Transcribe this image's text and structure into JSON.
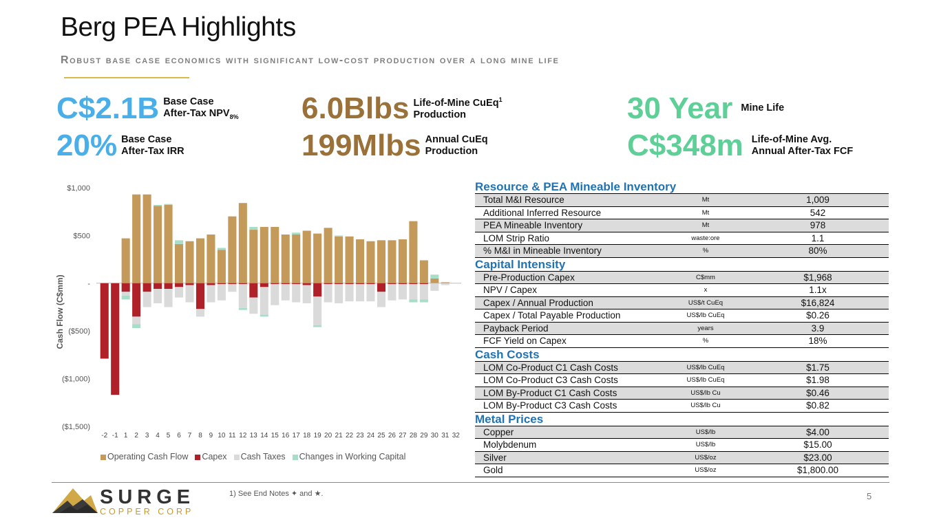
{
  "header": {
    "title": "Berg PEA Highlights",
    "subtitle": "Robust base case economics with significant low-cost production over a long mine life"
  },
  "metrics": {
    "npv": {
      "value": "C$2.1B",
      "label1": "Base Case",
      "label2": "After-Tax NPV",
      "label2_sub": "8%"
    },
    "irr": {
      "value": "20%",
      "label1": "Base Case",
      "label2": "After-Tax IRR"
    },
    "lom": {
      "value": "6.0Blbs",
      "label1": "Life-of-Mine CuEq",
      "label1_sup": "1",
      "label2": "Production"
    },
    "annual": {
      "value": "199Mlbs",
      "label1": "Annual CuEq",
      "label2": "Production"
    },
    "life": {
      "value": "30 Year",
      "label1": "Mine Life"
    },
    "fcf": {
      "value": "C$348m",
      "label1": "Life-of-Mine Avg.",
      "label2": "Annual After-Tax FCF"
    }
  },
  "colors": {
    "blue": "#4aaee8",
    "brown": "#9a7138",
    "green": "#5fcf98",
    "section": "#1f73b4",
    "gold": "#d8b94a",
    "operating": "#c39a5a",
    "capex": "#b02028",
    "taxes": "#dadada",
    "wc": "#a8dec8"
  },
  "chart_data": {
    "type": "bar",
    "stacked": true,
    "ylabel": "Cash Flow (C$mm)",
    "ylim": [
      -1500,
      1000
    ],
    "yticks": [
      1000,
      500,
      0,
      -500,
      -1000,
      -1500
    ],
    "ytick_labels": [
      "$1,000",
      "$500",
      "-",
      "($500)",
      "($1,000)",
      "($1,500)"
    ],
    "categories": [
      "-2",
      "-1",
      "1",
      "2",
      "3",
      "4",
      "5",
      "6",
      "7",
      "8",
      "9",
      "10",
      "11",
      "12",
      "13",
      "14",
      "15",
      "16",
      "17",
      "18",
      "19",
      "20",
      "21",
      "22",
      "23",
      "24",
      "25",
      "26",
      "27",
      "28",
      "29",
      "30",
      "31",
      "32"
    ],
    "series": [
      {
        "name": "Operating Cash Flow",
        "values": [
          0,
          0,
          470,
          930,
          930,
          810,
          820,
          410,
          440,
          470,
          510,
          350,
          700,
          840,
          560,
          590,
          590,
          510,
          510,
          550,
          520,
          580,
          490,
          490,
          460,
          440,
          450,
          450,
          460,
          650,
          240,
          50,
          10,
          0
        ]
      },
      {
        "name": "Capex",
        "values": [
          -790,
          -1170,
          -90,
          -350,
          -90,
          -60,
          -60,
          -40,
          -20,
          -270,
          -20,
          -10,
          -10,
          -10,
          -150,
          -40,
          -10,
          -10,
          -10,
          -20,
          -140,
          -10,
          -10,
          -10,
          -10,
          -10,
          -90,
          -10,
          -10,
          -10,
          -10,
          0,
          0,
          0
        ]
      },
      {
        "name": "Cash Taxes",
        "values": [
          0,
          0,
          -40,
          -80,
          -160,
          -150,
          -190,
          -110,
          -180,
          -80,
          -180,
          -170,
          -80,
          -250,
          -170,
          -290,
          -220,
          -170,
          -190,
          -190,
          -300,
          -190,
          -200,
          -180,
          -180,
          -180,
          -160,
          -170,
          -160,
          -160,
          -160,
          -80,
          -20,
          -5
        ]
      },
      {
        "name": "Changes in Working Capital",
        "values": [
          0,
          0,
          -40,
          -40,
          0,
          10,
          10,
          40,
          0,
          0,
          0,
          20,
          0,
          -20,
          30,
          -20,
          0,
          0,
          20,
          0,
          -20,
          0,
          10,
          0,
          0,
          0,
          0,
          0,
          0,
          -30,
          -30,
          40,
          0,
          0
        ]
      }
    ]
  },
  "tables": [
    {
      "title": "Resource & PEA Mineable Inventory",
      "rows": [
        {
          "label": "Total M&I Resource",
          "unit": "Mt",
          "value": "1,009"
        },
        {
          "label": "Additional Inferred Resource",
          "unit": "Mt",
          "value": "542"
        },
        {
          "label": "PEA Mineable Inventory",
          "unit": "Mt",
          "value": "978"
        },
        {
          "label": "LOM Strip Ratio",
          "unit": "waste:ore",
          "value": "1.1"
        },
        {
          "label": "% M&I in Mineable Inventory",
          "unit": "%",
          "value": "80%"
        }
      ]
    },
    {
      "title": "Capital Intensity",
      "rows": [
        {
          "label": "Pre-Production Capex",
          "unit": "C$mm",
          "value": "$1,968"
        },
        {
          "label": "NPV / Capex",
          "unit": "x",
          "value": "1.1x"
        },
        {
          "label": "Capex / Annual Production",
          "unit": "US$/t CuEq",
          "value": "$16,824"
        },
        {
          "label": "Capex / Total Payable Production",
          "unit": "US$/lb CuEq",
          "value": "$0.26"
        },
        {
          "label": "Payback Period",
          "unit": "years",
          "value": "3.9"
        },
        {
          "label": "FCF Yield on Capex",
          "unit": "%",
          "value": "18%"
        }
      ]
    },
    {
      "title": "Cash Costs",
      "rows": [
        {
          "label": "LOM Co-Product C1 Cash Costs",
          "unit": "US$/lb CuEq",
          "value": "$1.75"
        },
        {
          "label": "LOM Co-Product C3 Cash Costs",
          "unit": "US$/lb CuEq",
          "value": "$1.98"
        },
        {
          "label": "LOM By-Product C1 Cash Costs",
          "unit": "US$/lb Cu",
          "value": "$0.46"
        },
        {
          "label": "LOM By-Product C3 Cash Costs",
          "unit": "US$/lb Cu",
          "value": "$0.82"
        }
      ]
    },
    {
      "title": "Metal Prices",
      "rows": [
        {
          "label": "Copper",
          "unit": "US$/lb",
          "value": "$4.00"
        },
        {
          "label": "Molybdenum",
          "unit": "US$/lb",
          "value": "$15.00"
        },
        {
          "label": "Silver",
          "unit": "US$/oz",
          "value": "$23.00"
        },
        {
          "label": "Gold",
          "unit": "US$/oz",
          "value": "$1,800.00"
        }
      ]
    }
  ],
  "footer": {
    "logo_main": "SURGE",
    "logo_sub": "COPPER CORP",
    "note": "1)   See End Notes ✦ and ★.",
    "page": "5"
  }
}
